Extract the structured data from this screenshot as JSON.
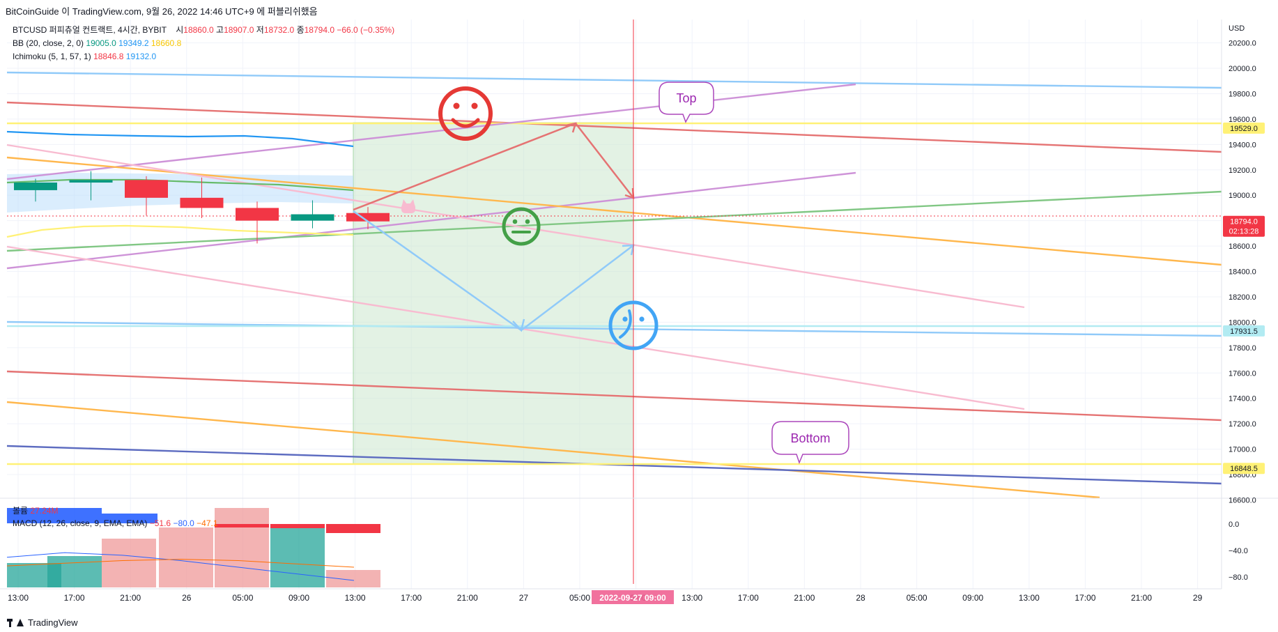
{
  "header": {
    "published_text": "BitCoinGuide 이 TradingView.com, 9월 26, 2022 14:46 UTC+9 에 퍼블리쉬했음"
  },
  "legend": {
    "symbol": "BTCUSD 퍼피츄얼 컨트랙트, 4시간, BYBIT",
    "ohlc": [
      {
        "label": "시",
        "value": "18860.0"
      },
      {
        "label": "고",
        "value": "18907.0"
      },
      {
        "label": "저",
        "value": "18732.0"
      },
      {
        "label": "종",
        "value": "18794.0"
      }
    ],
    "change": "−66.0 (−0.35%)",
    "bb": {
      "label": "BB (20, close, 2, 0)",
      "basis": "19005.0",
      "upper": "19349.2",
      "lower": "18660.8"
    },
    "ichimoku": {
      "label": "Ichimoku (5, 1, 57, 1)",
      "v1": "18846.8",
      "v2": "19132.0"
    }
  },
  "sub_legend": {
    "volume_label": "볼륨",
    "volume_value": "27.24M",
    "macd_label": "MACD (12, 26, close, 9, EMA, EMA)",
    "macd_values": [
      "−51.6",
      "−80.0",
      "−47.1"
    ]
  },
  "footer": {
    "brand": "TradingView"
  },
  "colors": {
    "up": "#089981",
    "down": "#f23645",
    "macd_line": "#2962ff",
    "signal_line": "#ff6d00",
    "hist_up": "#26a69a",
    "hist_down": "#ef9a9a"
  },
  "chart_data": {
    "type": "candlestick",
    "currency": "USD",
    "ylim": [
      16600,
      20200
    ],
    "y_ticks": [
      "20200.0",
      "20000.0",
      "19800.0",
      "19600.0",
      "19400.0",
      "19200.0",
      "19000.0",
      "18800.0",
      "18600.0",
      "18400.0",
      "18200.0",
      "18000.0",
      "17800.0",
      "17600.0",
      "17400.0",
      "17200.0",
      "17000.0",
      "16800.0",
      "16600.0"
    ],
    "x_ticks": [
      "13:00",
      "17:00",
      "21:00",
      "26",
      "05:00",
      "09:00",
      "13:00",
      "17:00",
      "21:00",
      "27",
      "05:00",
      "09:00",
      "13:00",
      "17:00",
      "21:00",
      "28",
      "05:00",
      "09:00",
      "13:00",
      "17:00",
      "21:00",
      "29"
    ],
    "crosshair_x_label": "2022-09-27  09:00",
    "candles": [
      {
        "o": 19040,
        "h": 19130,
        "l": 18950,
        "c": 19100
      },
      {
        "o": 19100,
        "h": 19190,
        "l": 18960,
        "c": 19120
      },
      {
        "o": 19120,
        "h": 19150,
        "l": 18840,
        "c": 18980
      },
      {
        "o": 18980,
        "h": 19140,
        "l": 18820,
        "c": 18900
      },
      {
        "o": 18900,
        "h": 18950,
        "l": 18620,
        "c": 18800
      },
      {
        "o": 18800,
        "h": 18960,
        "l": 18740,
        "c": 18850
      },
      {
        "o": 18860,
        "h": 18907,
        "l": 18732,
        "c": 18794
      }
    ],
    "price_badges": [
      {
        "price": 19529.0,
        "text": "19529.0",
        "bg": "#fff176",
        "fg": "#131722"
      },
      {
        "price": 18794.0,
        "text": "18794.0",
        "sub": "02:13:28",
        "bg": "#f23645",
        "fg": "#ffffff"
      },
      {
        "price": 17931.5,
        "text": "17931.5",
        "bg": "#b2ebf2",
        "fg": "#131722"
      },
      {
        "price": 16848.5,
        "text": "16848.5",
        "bg": "#fff176",
        "fg": "#131722"
      }
    ],
    "annotations": [
      {
        "text": "Top",
        "color": "#9c27b0"
      },
      {
        "text": "Bottom",
        "color": "#9c27b0"
      }
    ],
    "macd": {
      "ylim": [
        -90,
        20
      ],
      "y_ticks": [
        "0.0",
        "−40.0",
        "−80.0"
      ],
      "histogram": [
        -56,
        -46,
        -20,
        -10,
        12,
        -20,
        -68
      ],
      "macd_line": [
        -45,
        -38,
        -42,
        -50,
        -60,
        -70,
        -80
      ],
      "signal_line": [
        -58,
        -54,
        -50,
        -48,
        -50,
        -55,
        -60
      ]
    }
  }
}
